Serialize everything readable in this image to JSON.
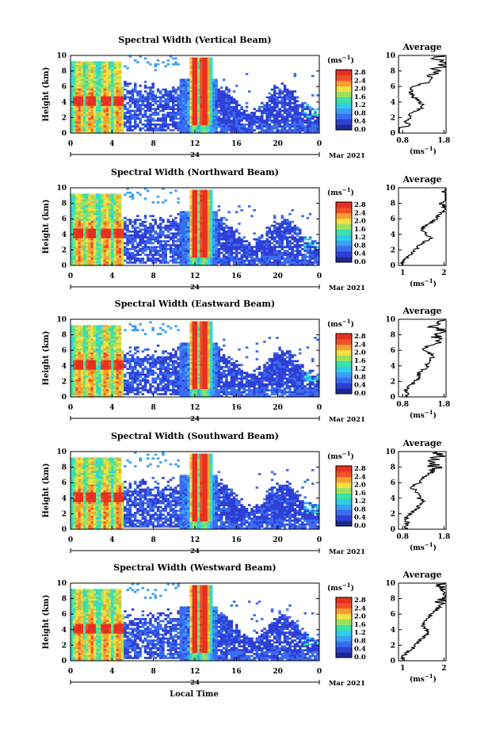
{
  "colorbar_ticks": [
    "0.0",
    "0.4",
    "0.8",
    "1.2",
    "1.6",
    "2.0",
    "2.4",
    "2.8"
  ],
  "colorbar_unit": "(ms",
  "colorbar_unit_sup": "−1",
  "colorbar_unit_close": ")",
  "main_x_ticks": [
    "0",
    "4",
    "8",
    "12",
    "16",
    "20",
    "0"
  ],
  "date_label": "24",
  "month_label": "Mar 2021",
  "y_ticks": [
    "0",
    "2",
    "4",
    "6",
    "8",
    "10"
  ],
  "ylabel": "Height (km)",
  "avg_title": "Average",
  "avg_xlabel": "(ms",
  "avg_xlabel_sup": "−1",
  "avg_xlabel_close": ")",
  "xlabel_bottom": "Local Time",
  "chart_data": [
    {
      "type": "heatmap",
      "title": "Spectral Width (Vertical Beam)",
      "xlim": [
        0,
        24
      ],
      "ylim": [
        0,
        10
      ],
      "clim": [
        0,
        2.8
      ],
      "avg_ticks": [
        "0.8",
        "1.8"
      ],
      "average_profile": {
        "height": [
          0.5,
          1,
          1.5,
          2,
          2.5,
          3,
          3.5,
          4,
          4.5,
          5,
          5.5,
          6,
          6.5,
          7,
          7.5,
          8,
          8.5,
          9,
          9.5,
          10
        ],
        "value": [
          0.6,
          1.0,
          0.8,
          1.0,
          1.0,
          1.2,
          1.3,
          1.2,
          1.1,
          1.0,
          1.0,
          1.0,
          1.4,
          1.5,
          1.5,
          1.6,
          1.7,
          1.8,
          1.6,
          1.7
        ]
      }
    },
    {
      "type": "heatmap",
      "title": "Spectral Width (Northward Beam)",
      "xlim": [
        0,
        24
      ],
      "ylim": [
        0,
        10
      ],
      "clim": [
        0,
        2.8
      ],
      "avg_ticks": [
        "1",
        "2"
      ],
      "average_profile": {
        "height": [
          0.5,
          1,
          1.5,
          2,
          2.5,
          3,
          3.5,
          4,
          4.5,
          5,
          5.5,
          6,
          6.5,
          7,
          7.5,
          8,
          8.5,
          9,
          9.5,
          10
        ],
        "value": [
          1.0,
          1.1,
          1.2,
          1.3,
          1.4,
          1.5,
          1.7,
          1.6,
          1.5,
          1.5,
          1.7,
          1.8,
          1.9,
          2.0,
          2.1,
          2.0,
          2.2,
          2.3,
          2.1,
          2.2
        ]
      }
    },
    {
      "type": "heatmap",
      "title": "Spectral Width (Eastward Beam)",
      "xlim": [
        0,
        24
      ],
      "ylim": [
        0,
        10
      ],
      "clim": [
        0,
        2.8
      ],
      "avg_ticks": [
        "0.8",
        "1.8"
      ],
      "average_profile": {
        "height": [
          0.5,
          1,
          1.5,
          2,
          2.5,
          3,
          3.5,
          4,
          4.5,
          5,
          5.5,
          6,
          6.5,
          7,
          7.5,
          8,
          8.5,
          9,
          9.5,
          10
        ],
        "value": [
          0.9,
          0.9,
          1.0,
          1.1,
          1.2,
          1.2,
          1.3,
          1.4,
          1.4,
          1.5,
          1.5,
          1.3,
          1.4,
          1.7,
          1.6,
          1.6,
          1.8,
          1.5,
          1.6,
          1.7
        ]
      }
    },
    {
      "type": "heatmap",
      "title": "Spectral Width (Southward Beam)",
      "xlim": [
        0,
        24
      ],
      "ylim": [
        0,
        10
      ],
      "clim": [
        0,
        2.8
      ],
      "avg_ticks": [
        "0.8",
        "1.8"
      ],
      "average_profile": {
        "height": [
          0.5,
          1,
          1.5,
          2,
          2.5,
          3,
          3.5,
          4,
          4.5,
          5,
          5.5,
          6,
          6.5,
          7,
          7.5,
          8,
          8.5,
          9,
          9.5,
          10
        ],
        "value": [
          0.9,
          0.9,
          0.9,
          1.0,
          1.1,
          1.2,
          1.3,
          1.2,
          1.2,
          1.1,
          1.0,
          1.2,
          1.3,
          1.4,
          1.5,
          1.6,
          1.5,
          1.6,
          1.7,
          1.6
        ]
      }
    },
    {
      "type": "heatmap",
      "title": "Spectral Width (Westward Beam)",
      "xlim": [
        0,
        24
      ],
      "ylim": [
        0,
        10
      ],
      "clim": [
        0,
        2.8
      ],
      "avg_ticks": [
        "1",
        "2"
      ],
      "average_profile": {
        "height": [
          0.5,
          1,
          1.5,
          2,
          2.5,
          3,
          3.5,
          4,
          4.5,
          5,
          5.5,
          6,
          6.5,
          7,
          7.5,
          8,
          8.5,
          9,
          9.5,
          10
        ],
        "value": [
          1.0,
          1.1,
          1.2,
          1.3,
          1.4,
          1.5,
          1.6,
          1.6,
          1.5,
          1.5,
          1.6,
          1.7,
          1.8,
          1.9,
          1.9,
          2.0,
          2.0,
          2.1,
          1.9,
          2.0
        ]
      }
    }
  ]
}
